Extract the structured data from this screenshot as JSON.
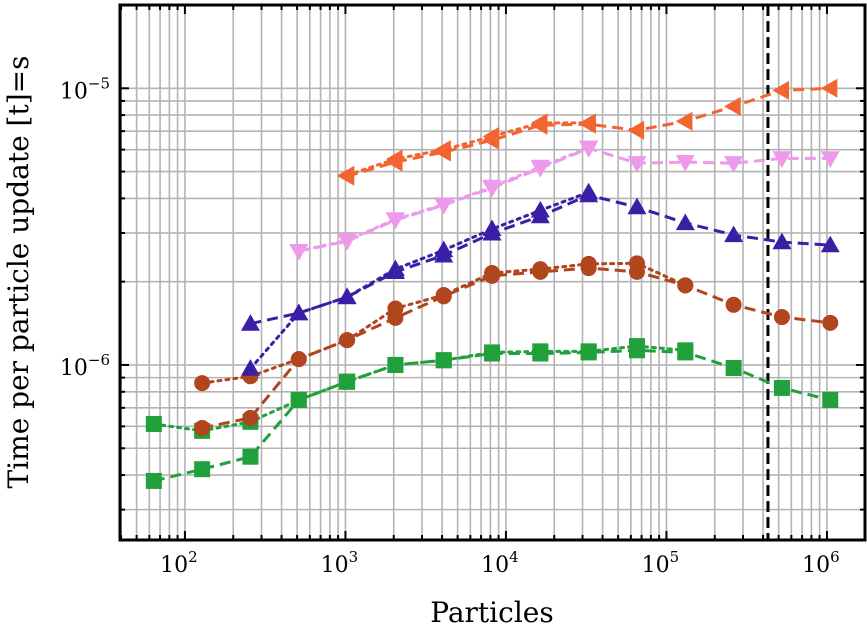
{
  "chart_data": {
    "type": "line",
    "title": "",
    "xlabel": "Particles",
    "ylabel": "Time per particle update [t]=s",
    "xscale": "log",
    "yscale": "log",
    "xlim": [
      39.4,
      1726000
    ],
    "ylim": [
      2.33e-07,
      2e-05
    ],
    "grid": "major and minor",
    "legend": "none",
    "xticks": [
      {
        "base": "10",
        "exp": "2",
        "value": 100
      },
      {
        "base": "10",
        "exp": "3",
        "value": 1000
      },
      {
        "base": "10",
        "exp": "4",
        "value": 10000
      },
      {
        "base": "10",
        "exp": "5",
        "value": 100000
      },
      {
        "base": "10",
        "exp": "6",
        "value": 1000000
      }
    ],
    "yticks": [
      {
        "base": "10",
        "exp": "−6",
        "value": 1e-06
      },
      {
        "base": "10",
        "exp": "−5",
        "value": 1e-05
      }
    ],
    "vline": {
      "x": 429000,
      "style": "dashed",
      "color": "#000000"
    },
    "series": [
      {
        "color": "#22a03c",
        "marker": "square",
        "style": "dashed",
        "x": [
          64,
          128,
          256,
          512,
          1024,
          2048,
          4096,
          8192,
          16384,
          32768,
          65536,
          131072,
          262144,
          524288,
          1048576
        ],
        "y": [
          3.81e-07,
          4.2e-07,
          4.66e-07,
          7.47e-07,
          8.7e-07,
          1e-06,
          1.04e-06,
          1.1e-06,
          1.1e-06,
          1.11e-06,
          1.13e-06,
          1.11e-06,
          9.75e-07,
          8.26e-07,
          7.47e-07
        ]
      },
      {
        "color": "#22a03c",
        "marker": "square",
        "style": "dotted",
        "x": [
          64,
          128,
          256,
          512,
          1024,
          2048,
          4096,
          8192,
          16384,
          32768,
          65536,
          131072
        ],
        "y": [
          6.12e-07,
          5.78e-07,
          6.23e-07,
          7.47e-07,
          8.7e-07,
          1e-06,
          1.04e-06,
          1.11e-06,
          1.12e-06,
          1.12e-06,
          1.17e-06,
          1.13e-06
        ]
      },
      {
        "color": "#b0451e",
        "marker": "circle",
        "style": "dashed",
        "x": [
          128,
          256,
          512,
          1024,
          2048,
          4096,
          8192,
          16384,
          32768,
          65536,
          131072,
          262144,
          524288,
          1048576
        ],
        "y": [
          5.92e-07,
          6.44e-07,
          1.05e-06,
          1.23e-06,
          1.48e-06,
          1.77e-06,
          2.1e-06,
          2.17e-06,
          2.24e-06,
          2.17e-06,
          1.94e-06,
          1.65e-06,
          1.49e-06,
          1.42e-06
        ]
      },
      {
        "color": "#b0451e",
        "marker": "circle",
        "style": "dotted",
        "x": [
          128,
          256,
          512,
          1024,
          2048,
          4096,
          8192,
          16384,
          32768,
          65536,
          131072
        ],
        "y": [
          8.6e-07,
          9.1e-07,
          1.05e-06,
          1.23e-06,
          1.6e-06,
          1.79e-06,
          2.15e-06,
          2.22e-06,
          2.32e-06,
          2.33e-06,
          1.94e-06
        ]
      },
      {
        "color": "#3a1fa6",
        "marker": "triangle-up",
        "style": "dashed",
        "x": [
          256,
          512,
          1024,
          2048,
          4096,
          8192,
          16384,
          32768,
          65536,
          131072,
          262144,
          524288,
          1048576
        ],
        "y": [
          1.41e-06,
          1.54e-06,
          1.76e-06,
          2.17e-06,
          2.49e-06,
          2.99e-06,
          3.45e-06,
          4.11e-06,
          3.72e-06,
          3.26e-06,
          2.95e-06,
          2.78e-06,
          2.71e-06
        ]
      },
      {
        "color": "#3a1fa6",
        "marker": "triangle-up",
        "style": "dotted",
        "x": [
          256,
          512,
          1024,
          2048,
          4096,
          8192,
          16384,
          32768
        ],
        "y": [
          9.7e-07,
          1.54e-06,
          1.76e-06,
          2.22e-06,
          2.6e-06,
          3.1e-06,
          3.62e-06,
          4.21e-06
        ]
      },
      {
        "color": "#ee9aea",
        "marker": "triangle-down",
        "style": "dashed",
        "x": [
          512,
          1024,
          2048,
          4096,
          8192,
          16384,
          32768,
          65536,
          131072,
          262144,
          524288,
          1048576
        ],
        "y": [
          2.58e-06,
          2.8e-06,
          3.34e-06,
          3.78e-06,
          4.36e-06,
          5.14e-06,
          6.07e-06,
          5.36e-06,
          5.41e-06,
          5.36e-06,
          5.58e-06,
          5.58e-06
        ]
      },
      {
        "color": "#ee9aea",
        "marker": "triangle-down",
        "style": "dotted",
        "x": [
          512,
          1024,
          2048,
          4096,
          8192,
          16384,
          32768
        ],
        "y": [
          2.58e-06,
          2.82e-06,
          3.36e-06,
          3.8e-06,
          4.4e-06,
          5.2e-06,
          6.1e-06
        ]
      },
      {
        "color": "#f26430",
        "marker": "triangle-left",
        "style": "dashed",
        "x": [
          1024,
          2048,
          4096,
          8192,
          16384,
          32768,
          65536,
          131072,
          262144,
          524288,
          1048576
        ],
        "y": [
          4.81e-06,
          5.41e-06,
          5.88e-06,
          6.49e-06,
          7.35e-06,
          7.42e-06,
          7.05e-06,
          7.6e-06,
          8.6e-06,
          9.83e-06,
          1e-05
        ]
      },
      {
        "color": "#f26430",
        "marker": "triangle-left",
        "style": "dotted",
        "x": [
          1024,
          2048,
          4096,
          8192,
          16384,
          32768
        ],
        "y": [
          4.85e-06,
          5.55e-06,
          6e-06,
          6.7e-06,
          7.5e-06,
          7.5e-06
        ]
      }
    ]
  }
}
